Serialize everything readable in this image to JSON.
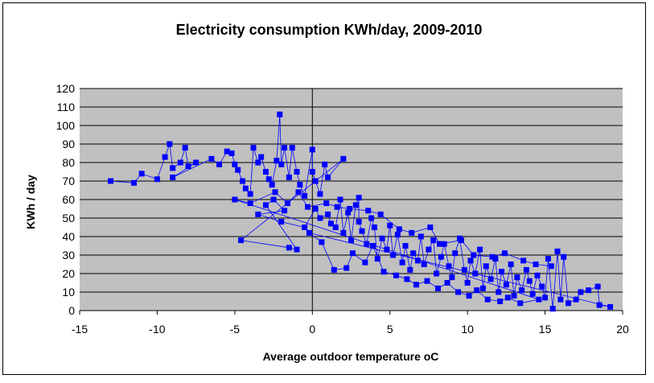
{
  "chart_data": {
    "type": "scatter",
    "title": "Electricity consumption KWh/day, 2009-2010",
    "xlabel": "Average outdoor temperature oC",
    "ylabel": "KWh / day",
    "xlim": [
      -15,
      20
    ],
    "ylim": [
      0,
      120
    ],
    "x_ticks": [
      -15,
      -10,
      -5,
      0,
      5,
      10,
      15,
      20
    ],
    "y_ticks": [
      0,
      10,
      20,
      30,
      40,
      50,
      60,
      70,
      80,
      90,
      100,
      110,
      120
    ],
    "grid": "horizontal",
    "plot_background": "#c0c0c0",
    "connected": true,
    "series": [
      {
        "color": "#0000ff",
        "marker": "square",
        "points": [
          [
            -13,
            70
          ],
          [
            -11.5,
            69
          ],
          [
            -11,
            74
          ],
          [
            -10,
            71
          ],
          [
            -9.5,
            83
          ],
          [
            -9.2,
            90
          ],
          [
            -9,
            77
          ],
          [
            -8.5,
            80
          ],
          [
            -8.2,
            88
          ],
          [
            -8,
            78
          ],
          [
            -7.5,
            80
          ],
          [
            -9,
            72
          ],
          [
            -6.5,
            82
          ],
          [
            -6,
            79
          ],
          [
            -5.5,
            86
          ],
          [
            -5.2,
            85
          ],
          [
            -5,
            79
          ],
          [
            -4.8,
            76
          ],
          [
            -4.5,
            70
          ],
          [
            -4.3,
            66
          ],
          [
            -4,
            63
          ],
          [
            -3.8,
            88
          ],
          [
            -3.5,
            80
          ],
          [
            -3.3,
            83
          ],
          [
            -3,
            75
          ],
          [
            -2.8,
            71
          ],
          [
            -2.6,
            68
          ],
          [
            -2.3,
            81
          ],
          [
            -2.1,
            106
          ],
          [
            -2,
            79
          ],
          [
            -1.8,
            88
          ],
          [
            -1.5,
            72
          ],
          [
            -1.3,
            88
          ],
          [
            -1,
            75
          ],
          [
            -0.8,
            68
          ],
          [
            -0.5,
            62
          ],
          [
            0,
            87
          ],
          [
            0,
            75
          ],
          [
            0.2,
            70
          ],
          [
            0.5,
            63
          ],
          [
            0.8,
            79
          ],
          [
            1,
            72
          ],
          [
            2,
            82
          ],
          [
            -4.6,
            38
          ],
          [
            -1.5,
            34
          ],
          [
            -1,
            33
          ],
          [
            -3,
            57
          ],
          [
            -2.5,
            60
          ],
          [
            -1.8,
            54
          ],
          [
            -3.5,
            52
          ],
          [
            -2,
            48
          ],
          [
            -0.5,
            45
          ],
          [
            0.2,
            55
          ],
          [
            0.5,
            50
          ],
          [
            1,
            52
          ],
          [
            1.2,
            47
          ],
          [
            1.5,
            45
          ],
          [
            1.8,
            60
          ],
          [
            2,
            42
          ],
          [
            2.3,
            53
          ],
          [
            2.5,
            38
          ],
          [
            2.8,
            57
          ],
          [
            3,
            61
          ],
          [
            3,
            48
          ],
          [
            3.2,
            43
          ],
          [
            3.5,
            36
          ],
          [
            3.8,
            50
          ],
          [
            4,
            45
          ],
          [
            4.2,
            28
          ],
          [
            4.5,
            39
          ],
          [
            4.8,
            33
          ],
          [
            5,
            46
          ],
          [
            5.2,
            30
          ],
          [
            5.5,
            41
          ],
          [
            5.8,
            26
          ],
          [
            6,
            35
          ],
          [
            6.3,
            22
          ],
          [
            6.5,
            31
          ],
          [
            6.8,
            27
          ],
          [
            7,
            40
          ],
          [
            7.2,
            25
          ],
          [
            7.5,
            33
          ],
          [
            7.8,
            38
          ],
          [
            8,
            20
          ],
          [
            8.3,
            29
          ],
          [
            8.5,
            36
          ],
          [
            8.8,
            24
          ],
          [
            9,
            18
          ],
          [
            9.2,
            31
          ],
          [
            9.5,
            39
          ],
          [
            9.8,
            22
          ],
          [
            10,
            15
          ],
          [
            10.2,
            27
          ],
          [
            10.5,
            20
          ],
          [
            10.8,
            33
          ],
          [
            11,
            12
          ],
          [
            11.2,
            24
          ],
          [
            11.5,
            17
          ],
          [
            11.8,
            28
          ],
          [
            12,
            10
          ],
          [
            12.2,
            21
          ],
          [
            12.5,
            14
          ],
          [
            12.8,
            25
          ],
          [
            13,
            8
          ],
          [
            13.2,
            18
          ],
          [
            13.5,
            11
          ],
          [
            13.8,
            22
          ],
          [
            14,
            16
          ],
          [
            14.2,
            9
          ],
          [
            14.5,
            19
          ],
          [
            14.8,
            13
          ],
          [
            15,
            7
          ],
          [
            15.2,
            28
          ],
          [
            15.5,
            1
          ],
          [
            15.8,
            32
          ],
          [
            16,
            6
          ],
          [
            16.2,
            29
          ],
          [
            16.5,
            4
          ],
          [
            17,
            6
          ],
          [
            17.3,
            10
          ],
          [
            17.8,
            11
          ],
          [
            18.4,
            13
          ],
          [
            18.5,
            3
          ],
          [
            19.2,
            2
          ],
          [
            -0.2,
            42
          ],
          [
            0.6,
            37
          ],
          [
            1.4,
            22
          ],
          [
            2.2,
            23
          ],
          [
            2.6,
            31
          ],
          [
            3.4,
            26
          ],
          [
            3.9,
            35
          ],
          [
            4.6,
            21
          ],
          [
            5.4,
            19
          ],
          [
            6.1,
            17
          ],
          [
            6.7,
            14
          ],
          [
            7.4,
            16
          ],
          [
            8.1,
            12
          ],
          [
            8.7,
            15
          ],
          [
            9.4,
            10
          ],
          [
            10.1,
            8
          ],
          [
            10.6,
            11
          ],
          [
            11.3,
            6
          ],
          [
            12.1,
            5
          ],
          [
            12.6,
            7
          ],
          [
            13.4,
            4
          ],
          [
            14.6,
            6
          ],
          [
            -5,
            60
          ],
          [
            -4,
            58
          ],
          [
            -2.4,
            64
          ],
          [
            -1.6,
            58
          ],
          [
            -0.9,
            64
          ],
          [
            -0.3,
            56
          ],
          [
            0.9,
            58
          ],
          [
            1.6,
            56
          ],
          [
            2.4,
            55
          ],
          [
            3.6,
            54
          ],
          [
            4.4,
            52
          ],
          [
            5.6,
            44
          ],
          [
            6.4,
            42
          ],
          [
            7.6,
            45
          ],
          [
            8.2,
            36
          ],
          [
            9.6,
            38
          ],
          [
            10.4,
            30
          ],
          [
            11.6,
            29
          ],
          [
            12.4,
            31
          ],
          [
            13.6,
            27
          ],
          [
            14.4,
            25
          ],
          [
            15.4,
            24
          ]
        ]
      }
    ]
  }
}
